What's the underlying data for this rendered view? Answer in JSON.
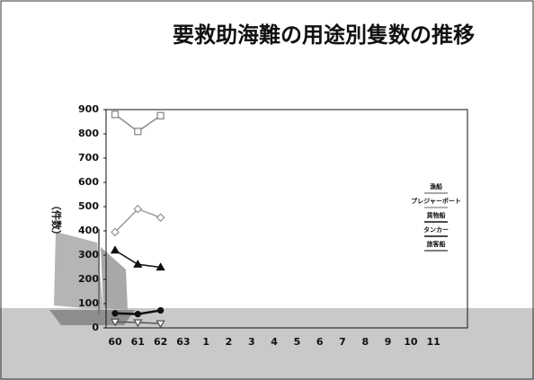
{
  "chart_data": {
    "type": "line",
    "title": "要救助海難の用途別隻数の推移",
    "y_label": "（件数）",
    "categories": [
      "60",
      "61",
      "62",
      "63",
      "1",
      "2",
      "3",
      "4",
      "5",
      "6",
      "7",
      "8",
      "9",
      "10",
      "11"
    ],
    "series": [
      {
        "name": "漁船",
        "color": "#8a8a8a",
        "marker": "square",
        "values": [
          880,
          810,
          875,
          null,
          null,
          null,
          null,
          null,
          null,
          null,
          null,
          null,
          null,
          null,
          null
        ]
      },
      {
        "name": "プレジャーボート",
        "color": "#9a9a9a",
        "marker": "diamond",
        "values": [
          395,
          490,
          455,
          null,
          null,
          null,
          null,
          null,
          null,
          null,
          null,
          null,
          null,
          null,
          null
        ]
      },
      {
        "name": "貨物船",
        "color": "#111111",
        "marker": "triangle",
        "values": [
          320,
          262,
          250,
          null,
          null,
          null,
          null,
          null,
          null,
          null,
          null,
          null,
          null,
          null,
          null
        ]
      },
      {
        "name": "タンカー",
        "color": "#111111",
        "marker": "circle",
        "values": [
          60,
          57,
          72,
          null,
          null,
          null,
          null,
          null,
          null,
          null,
          null,
          null,
          null,
          null,
          null
        ]
      },
      {
        "name": "旅客船",
        "color": "#555555",
        "marker": "down",
        "values": [
          25,
          22,
          18,
          null,
          null,
          null,
          null,
          null,
          null,
          null,
          null,
          null,
          null,
          null,
          null
        ]
      }
    ],
    "ylim": [
      0,
      900
    ],
    "yticks": [
      0,
      100,
      200,
      300,
      400,
      500,
      600,
      700,
      800,
      900
    ],
    "legend": "right"
  }
}
